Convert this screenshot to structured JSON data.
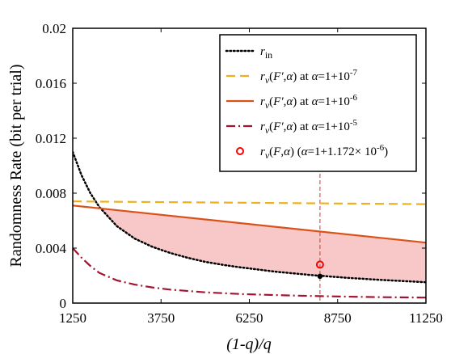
{
  "chart_data": {
    "type": "line",
    "xlabel": "(1-q)/q",
    "ylabel": "Randomness Rate (bit per trial)",
    "xlim": [
      1250,
      11250
    ],
    "ylim": [
      0,
      0.02
    ],
    "x_ticks": [
      "1250",
      "3750",
      "6250",
      "8750",
      "11250"
    ],
    "y_ticks": [
      "0",
      "0.004",
      "0.008",
      "0.012",
      "0.016",
      "0.02"
    ],
    "grid": false,
    "legend_position": "top-right",
    "series": [
      {
        "name": "r_in",
        "legend_html": "<tspan font-style='italic'>r</tspan><tspan baseline-shift='-4' font-size='12'>in</tspan>",
        "style": "dotted",
        "color": "#000000",
        "x": [
          1250,
          1500,
          1750,
          2000,
          2500,
          3000,
          3500,
          4000,
          4500,
          5000,
          5500,
          6000,
          7000,
          8000,
          9000,
          10000,
          11250
        ],
        "y": [
          0.011,
          0.0093,
          0.008,
          0.007,
          0.0056,
          0.0047,
          0.0041,
          0.00365,
          0.0033,
          0.003,
          0.00278,
          0.0026,
          0.00228,
          0.00204,
          0.00184,
          0.00168,
          0.00152
        ]
      },
      {
        "name": "r_ν(F′,α) at α=1+10^-7",
        "legend_html": "<tspan font-style='italic'>r</tspan><tspan baseline-shift='-4' font-size='12' font-style='italic'>ν</tspan><tspan>(</tspan><tspan font-style='italic'>F′</tspan><tspan>,</tspan><tspan font-style='italic'>α</tspan><tspan>) at </tspan><tspan font-style='italic'>α</tspan><tspan>=1+10</tspan><tspan baseline-shift='6' font-size='11'>-7</tspan>",
        "style": "dashed",
        "color": "#EDB120",
        "x": [
          1250,
          11250
        ],
        "y": [
          0.0074,
          0.0072
        ]
      },
      {
        "name": "r_ν(F′,α) at α=1+10^-6",
        "legend_html": "<tspan font-style='italic'>r</tspan><tspan baseline-shift='-4' font-size='12' font-style='italic'>ν</tspan><tspan>(</tspan><tspan font-style='italic'>F′</tspan><tspan>,</tspan><tspan font-style='italic'>α</tspan><tspan>) at </tspan><tspan font-style='italic'>α</tspan><tspan>=1+10</tspan><tspan baseline-shift='6' font-size='11'>-6</tspan>",
        "style": "solid",
        "color": "#D95319",
        "x": [
          1250,
          11250
        ],
        "y": [
          0.0071,
          0.0044
        ]
      },
      {
        "name": "r_ν(F′,α) at α=1+10^-5",
        "legend_html": "<tspan font-style='italic'>r</tspan><tspan baseline-shift='-4' font-size='12' font-style='italic'>ν</tspan><tspan>(</tspan><tspan font-style='italic'>F′</tspan><tspan>,</tspan><tspan font-style='italic'>α</tspan><tspan>) at </tspan><tspan font-style='italic'>α</tspan><tspan>=1+10</tspan><tspan baseline-shift='6' font-size='11'>-5</tspan>",
        "style": "dashdot",
        "color": "#A2142F",
        "x": [
          1250,
          1500,
          1750,
          2000,
          2500,
          3000,
          3500,
          4000,
          5000,
          6000,
          7000,
          8000,
          9000,
          10000,
          11250
        ],
        "y": [
          0.004,
          0.0033,
          0.0027,
          0.0022,
          0.00165,
          0.00135,
          0.00114,
          0.00098,
          0.00078,
          0.00066,
          0.00058,
          0.00052,
          0.00047,
          0.00043,
          0.0004
        ]
      },
      {
        "name": "r_ν(F,α) (α=1+1.172×10^-6)",
        "legend_html": "<tspan font-style='italic'>r</tspan><tspan baseline-shift='-4' font-size='12' font-style='italic'>ν</tspan><tspan>(</tspan><tspan font-style='italic'>F</tspan><tspan>,</tspan><tspan font-style='italic'>α</tspan><tspan>) (</tspan><tspan font-style='italic'>α</tspan><tspan>=1+1.172× 10</tspan><tspan baseline-shift='6' font-size='11'>-6</tspan><tspan>)</tspan>",
        "style": "marker-circle",
        "color": "#FF0000",
        "x": [
          8250
        ],
        "y": [
          0.0028
        ]
      }
    ],
    "annotations": {
      "shaded_region": {
        "between": [
          "r_ν(F′,α) at α=1+10^-6",
          "r_in"
        ],
        "color": "#F8C8C8"
      },
      "vertical_dashed_line": {
        "x": 8250,
        "color": "#E03030"
      },
      "black_point": {
        "x": 8250,
        "y": 0.00195
      }
    }
  }
}
